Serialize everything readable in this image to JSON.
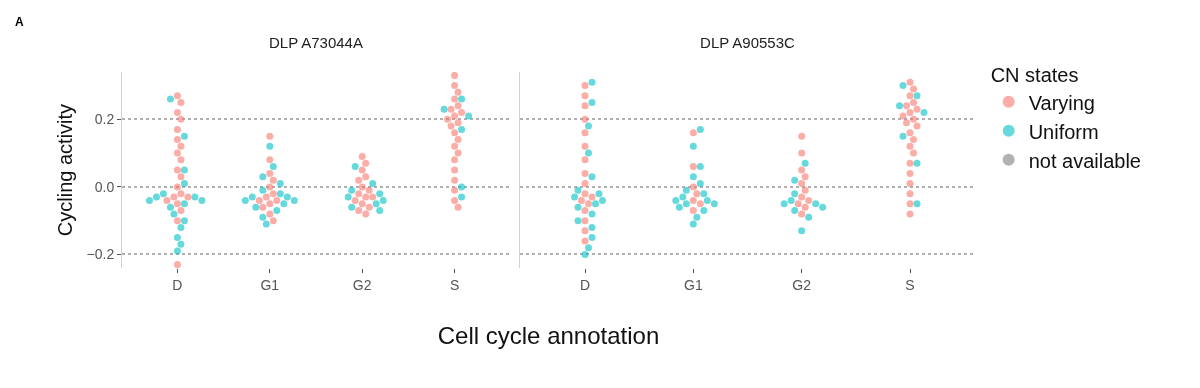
{
  "chart_data": [
    {
      "type": "scatter",
      "title": "DLP A73044A",
      "xlabel": "Cell cycle annotation",
      "ylabel": "Cycling activity",
      "annotations": [
        "A"
      ],
      "categories": [
        "D",
        "G1",
        "G2",
        "S"
      ],
      "ylim": [
        -0.24,
        0.34
      ],
      "yticks": [
        {
          "value": -0.2,
          "label": "−0.2"
        },
        {
          "value": 0,
          "label": "0.0"
        },
        {
          "value": 0.2,
          "label": "0.2"
        }
      ],
      "grid": "y",
      "legend": false,
      "marker": "circle",
      "series": [
        {
          "color": "#f8766d",
          "x": [
            "D",
            "D",
            "D",
            "D",
            "D",
            "D",
            "D",
            "D",
            "D",
            "D",
            "D",
            "D",
            "D",
            "D",
            "D",
            "D",
            "D",
            "D",
            "D",
            "D",
            "G1",
            "G1",
            "G1",
            "G1",
            "G1",
            "G1",
            "G1",
            "G1",
            "G1",
            "G1",
            "G1",
            "G1",
            "G1",
            "G2",
            "G2",
            "G2",
            "G2",
            "G2",
            "G2",
            "G2",
            "G2",
            "G2",
            "G2",
            "G2",
            "G2",
            "G2",
            "G2",
            "G2",
            "S",
            "S",
            "S",
            "S",
            "S",
            "S",
            "S",
            "S",
            "S",
            "S",
            "S",
            "S",
            "S",
            "S",
            "S",
            "S",
            "S",
            "S",
            "S",
            "S",
            "S"
          ],
          "values": [
            0.27,
            0.25,
            0.22,
            0.2,
            0.17,
            0.14,
            0.12,
            0.1,
            0.08,
            0.05,
            0.03,
            0.0,
            -0.02,
            -0.03,
            -0.03,
            -0.04,
            -0.05,
            -0.07,
            -0.1,
            -0.23,
            0.15,
            0.08,
            0.04,
            0.02,
            0.0,
            -0.02,
            -0.03,
            -0.04,
            -0.04,
            -0.05,
            -0.06,
            -0.08,
            -0.1,
            0.09,
            0.07,
            0.05,
            0.03,
            0.02,
            0.0,
            -0.01,
            -0.02,
            -0.03,
            -0.03,
            -0.04,
            -0.05,
            -0.06,
            -0.07,
            -0.08,
            0.33,
            0.3,
            0.28,
            0.26,
            0.24,
            0.23,
            0.22,
            0.21,
            0.2,
            0.19,
            0.18,
            0.16,
            0.14,
            0.12,
            0.1,
            0.08,
            0.05,
            0.02,
            -0.01,
            -0.04,
            -0.06
          ]
        },
        {
          "color": "#00bfc4",
          "x": [
            "D",
            "D",
            "D",
            "D",
            "D",
            "D",
            "D",
            "D",
            "D",
            "D",
            "D",
            "D",
            "D",
            "D",
            "D",
            "D",
            "D",
            "G1",
            "G1",
            "G1",
            "G1",
            "G1",
            "G1",
            "G1",
            "G1",
            "G1",
            "G1",
            "G1",
            "G1",
            "G1",
            "G1",
            "G1",
            "G2",
            "G2",
            "G2",
            "G2",
            "G2",
            "G2",
            "G2",
            "G2",
            "G2",
            "S",
            "S",
            "S",
            "S",
            "S",
            "S"
          ],
          "values": [
            0.26,
            0.15,
            0.05,
            0.01,
            -0.02,
            -0.03,
            -0.03,
            -0.04,
            -0.04,
            -0.05,
            -0.06,
            -0.08,
            -0.1,
            -0.12,
            -0.15,
            -0.17,
            -0.19,
            0.12,
            0.06,
            0.03,
            0.01,
            -0.01,
            -0.02,
            -0.03,
            -0.03,
            -0.04,
            -0.04,
            -0.05,
            -0.06,
            -0.07,
            -0.09,
            -0.11,
            0.06,
            0.01,
            -0.01,
            -0.02,
            -0.03,
            -0.04,
            -0.05,
            -0.06,
            -0.07,
            0.26,
            0.23,
            0.21,
            0.17,
            0.0,
            -0.03
          ]
        }
      ]
    },
    {
      "type": "scatter",
      "title": "DLP A90553C",
      "legend_title": "CN states",
      "categories": [
        "D",
        "G1",
        "G2",
        "S"
      ],
      "ylim": [
        -0.24,
        0.34
      ],
      "yticks": [
        {
          "value": -0.2,
          "label": null
        },
        {
          "value": 0,
          "label": null
        },
        {
          "value": 0.2,
          "label": null
        }
      ],
      "tick_labels": "x",
      "grid": "y",
      "legend": "right",
      "marker": "circle",
      "series": [
        {
          "name": "Varying",
          "color": "#f8766d",
          "x": [
            "D",
            "D",
            "D",
            "D",
            "D",
            "D",
            "D",
            "D",
            "D",
            "D",
            "D",
            "D",
            "D",
            "D",
            "D",
            "D",
            "D",
            "G1",
            "G1",
            "G1",
            "G1",
            "G1",
            "G1",
            "G1",
            "G2",
            "G2",
            "G2",
            "G2",
            "G2",
            "G2",
            "G2",
            "G2",
            "G2",
            "G2",
            "G2",
            "S",
            "S",
            "S",
            "S",
            "S",
            "S",
            "S",
            "S",
            "S",
            "S",
            "S",
            "S",
            "S",
            "S",
            "S",
            "S",
            "S",
            "S",
            "S",
            "S",
            "S"
          ],
          "values": [
            0.3,
            0.27,
            0.24,
            0.2,
            0.16,
            0.12,
            0.08,
            0.04,
            0.01,
            -0.02,
            -0.03,
            -0.04,
            -0.05,
            -0.07,
            -0.1,
            -0.13,
            -0.16,
            0.16,
            0.06,
            0.0,
            -0.02,
            -0.04,
            -0.05,
            -0.07,
            0.15,
            0.1,
            0.05,
            0.03,
            0.01,
            -0.01,
            -0.03,
            -0.04,
            -0.05,
            -0.06,
            -0.08,
            0.31,
            0.29,
            0.27,
            0.25,
            0.24,
            0.23,
            0.22,
            0.21,
            0.2,
            0.19,
            0.18,
            0.16,
            0.14,
            0.12,
            0.1,
            0.07,
            0.04,
            0.01,
            -0.02,
            -0.05,
            -0.08
          ]
        },
        {
          "name": "Uniform",
          "color": "#00bfc4",
          "x": [
            "D",
            "D",
            "D",
            "D",
            "D",
            "D",
            "D",
            "D",
            "D",
            "D",
            "D",
            "D",
            "D",
            "D",
            "D",
            "D",
            "D",
            "G1",
            "G1",
            "G1",
            "G1",
            "G1",
            "G1",
            "G1",
            "G1",
            "G1",
            "G1",
            "G1",
            "G1",
            "G1",
            "G1",
            "G1",
            "G1",
            "G2",
            "G2",
            "G2",
            "G2",
            "G2",
            "G2",
            "G2",
            "G2",
            "G2",
            "G2",
            "S",
            "S",
            "S",
            "S",
            "S",
            "S",
            "S"
          ],
          "values": [
            0.31,
            0.25,
            0.18,
            0.1,
            0.03,
            -0.01,
            -0.02,
            -0.03,
            -0.04,
            -0.05,
            -0.06,
            -0.08,
            -0.1,
            -0.12,
            -0.15,
            -0.18,
            -0.2,
            0.17,
            0.12,
            0.06,
            0.03,
            0.01,
            -0.01,
            -0.02,
            -0.03,
            -0.04,
            -0.04,
            -0.05,
            -0.05,
            -0.06,
            -0.07,
            -0.09,
            -0.11,
            0.07,
            0.02,
            -0.02,
            -0.04,
            -0.05,
            -0.05,
            -0.06,
            -0.07,
            -0.09,
            -0.13,
            0.3,
            0.27,
            0.24,
            0.22,
            0.15,
            0.07,
            -0.05
          ]
        },
        {
          "name": "not available",
          "color": "#7f7f7f",
          "x": [
            "D"
          ],
          "values": [
            null
          ]
        }
      ]
    }
  ]
}
